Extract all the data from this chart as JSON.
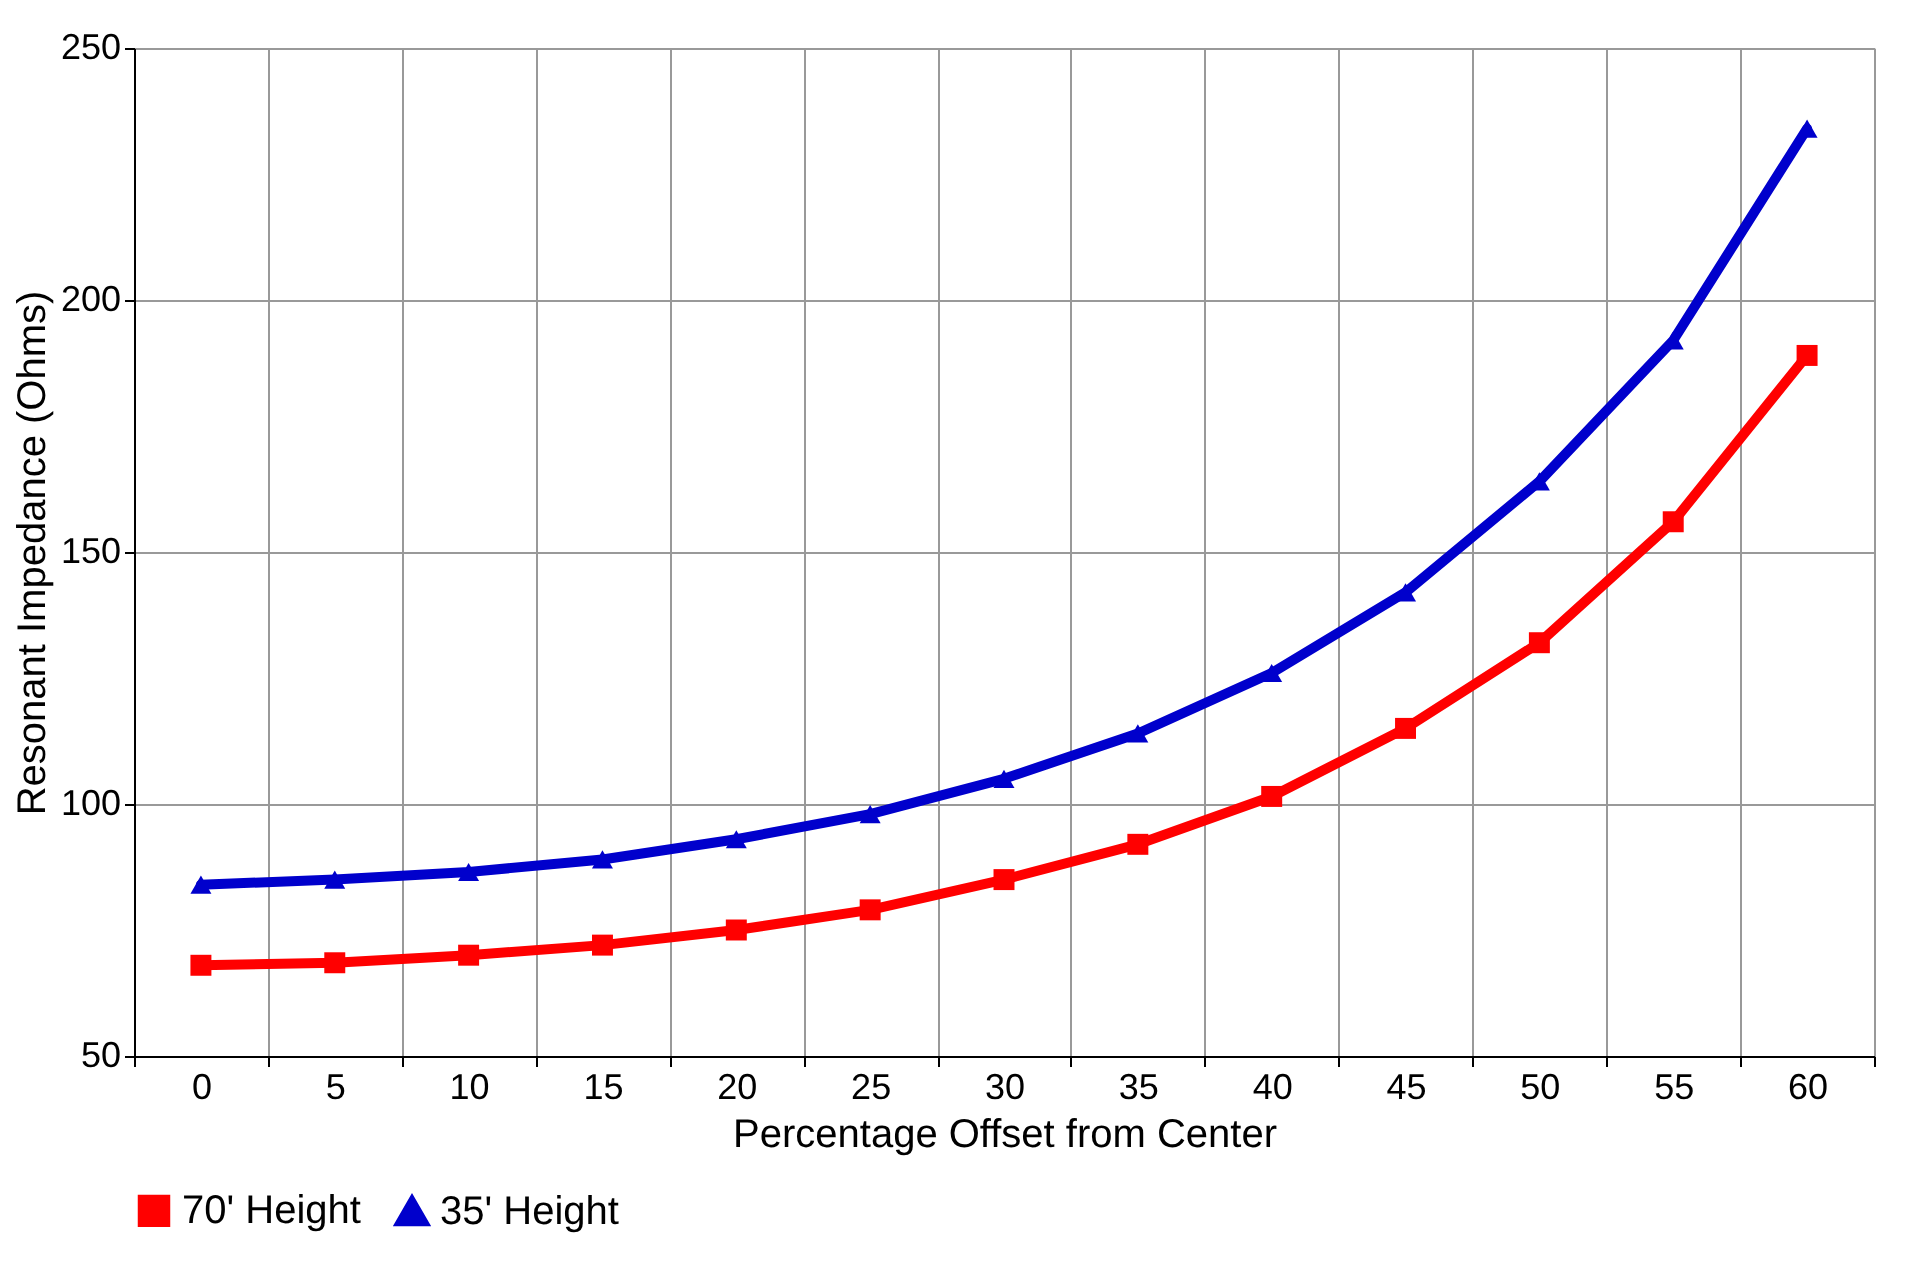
{
  "chart_data": {
    "type": "line",
    "xlabel": "Percentage Offset from Center",
    "ylabel": "Resonant Impedance (Ohms)",
    "categories": [
      "0",
      "5",
      "10",
      "15",
      "20",
      "25",
      "30",
      "35",
      "40",
      "45",
      "50",
      "55",
      "60"
    ],
    "series": [
      {
        "name": "70' Height",
        "color": "#ff0000",
        "marker": "square",
        "values": [
          68,
          68.5,
          70,
          72,
          75,
          79,
          85,
          92,
          101.5,
          115,
          132,
          156,
          189
        ]
      },
      {
        "name": "35' Height",
        "color": "#0000cc",
        "marker": "triangle",
        "values": [
          84,
          85,
          86.5,
          89,
          93,
          98,
          105,
          114,
          126,
          142,
          164,
          192,
          234
        ]
      }
    ],
    "ylim": [
      50,
      250
    ],
    "yticks": [
      50,
      100,
      150,
      200,
      250
    ],
    "grid": true,
    "legend": "bottom",
    "line_style": "solid"
  }
}
